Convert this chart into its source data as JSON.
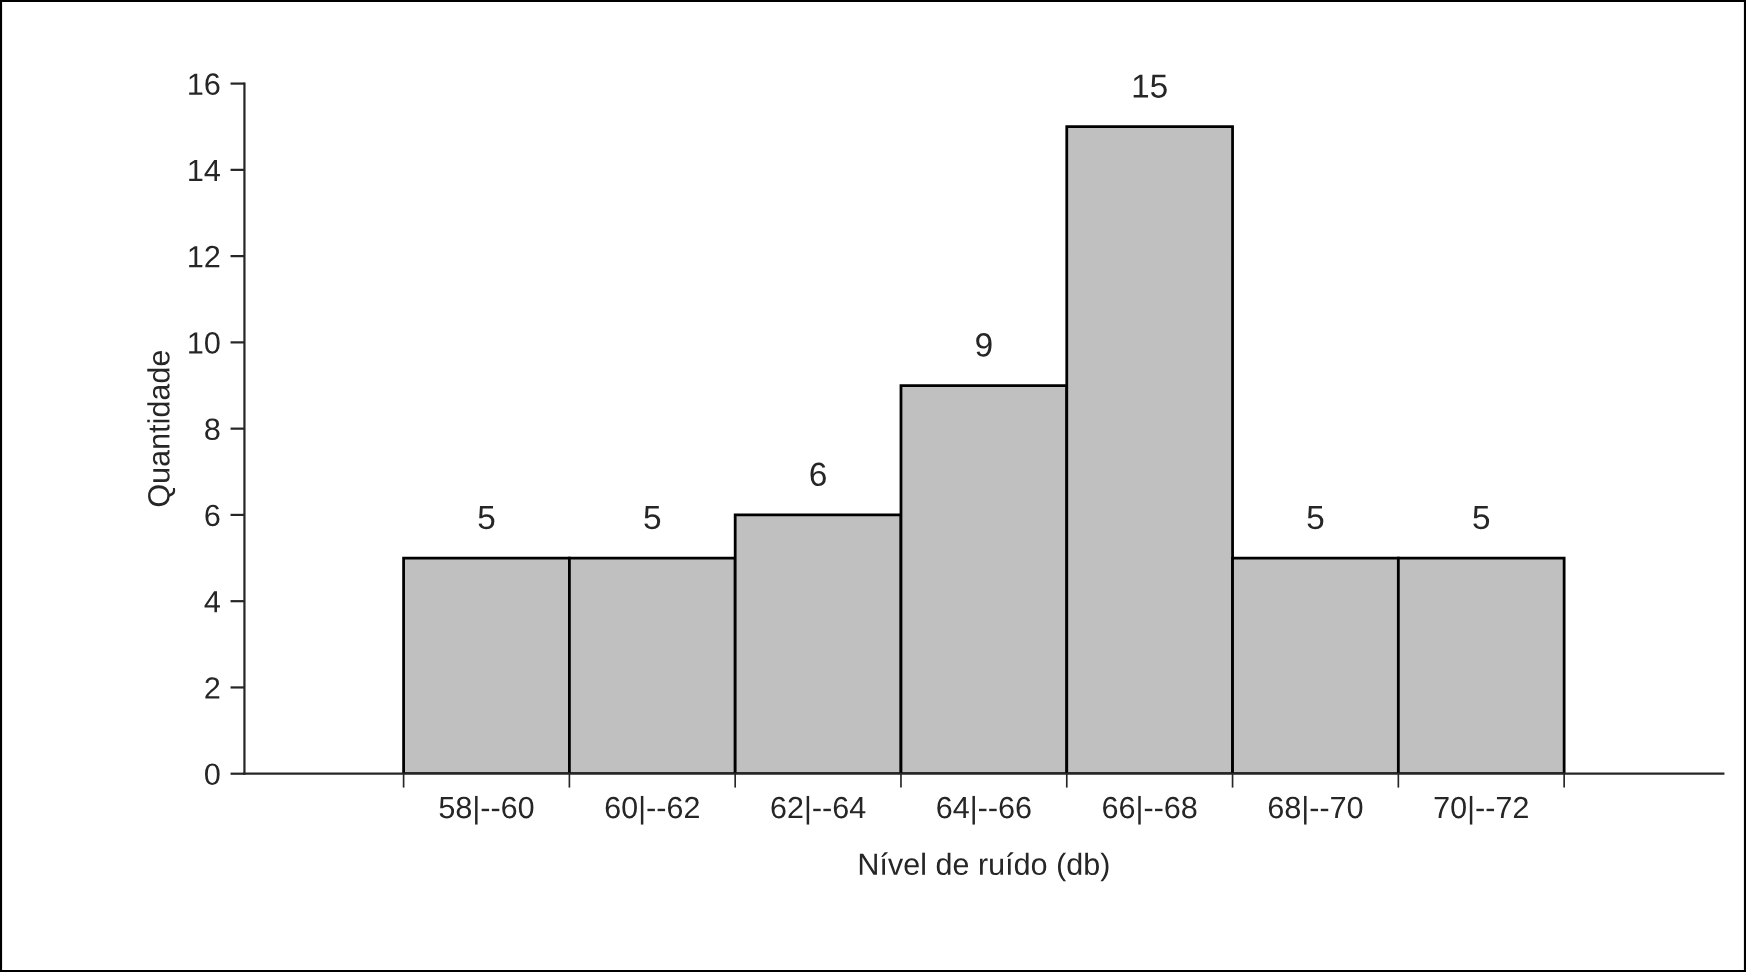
{
  "chart_data": {
    "type": "bar",
    "xlabel": "Nível de ruído (db)",
    "ylabel": "Quantidade",
    "categories": [
      "58|--60",
      "60|--62",
      "62|--64",
      "64|--66",
      "66|--68",
      "68|--70",
      "70|--72"
    ],
    "values": [
      5,
      5,
      6,
      9,
      15,
      5,
      5
    ],
    "color": "#c0c0c0",
    "ylim": [
      0,
      16
    ],
    "yticks": [
      0,
      2,
      4,
      6,
      8,
      10,
      12,
      14,
      16
    ],
    "grid": false,
    "data_labels": true
  }
}
